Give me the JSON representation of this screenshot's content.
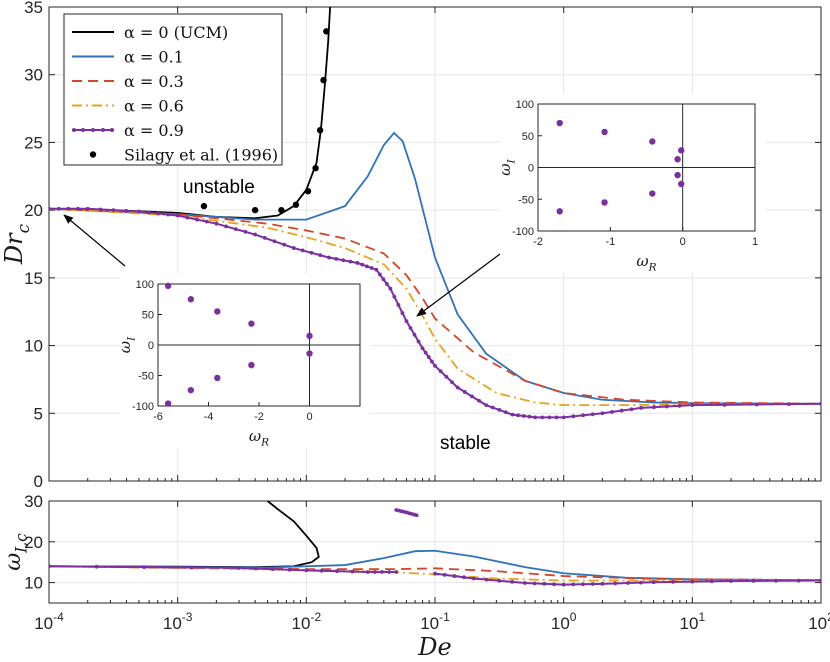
{
  "chart_data": [
    {
      "type": "line",
      "panel": "main",
      "ylabel": "Dr_c",
      "xscale": "log",
      "xlim": [
        0.0001,
        100
      ],
      "ylim": [
        0,
        35
      ],
      "grid": true,
      "legend_position": "top-left",
      "x_ticks": [
        "10^-4",
        "10^-3",
        "10^-2",
        "10^-1",
        "10^0",
        "10^1",
        "10^2"
      ],
      "y_ticks": [
        0,
        5,
        10,
        15,
        20,
        25,
        30,
        35
      ],
      "series": [
        {
          "name": "α = 0 (UCM)",
          "color": "#000000",
          "style": "solid",
          "points": [
            [
              0.0001,
              20.1
            ],
            [
              0.0003,
              20.0
            ],
            [
              0.001,
              19.8
            ],
            [
              0.002,
              19.5
            ],
            [
              0.004,
              19.4
            ],
            [
              0.006,
              19.6
            ],
            [
              0.008,
              20.3
            ],
            [
              0.01,
              21.5
            ],
            [
              0.012,
              23.5
            ],
            [
              0.013,
              26
            ],
            [
              0.014,
              29.5
            ],
            [
              0.0148,
              32.5
            ],
            [
              0.0153,
              35
            ]
          ]
        },
        {
          "name": "α = 0.1",
          "color": "#2f72bd",
          "style": "solid",
          "points": [
            [
              0.0001,
              20.1
            ],
            [
              0.001,
              19.7
            ],
            [
              0.004,
              19.3
            ],
            [
              0.01,
              19.3
            ],
            [
              0.02,
              20.3
            ],
            [
              0.03,
              22.5
            ],
            [
              0.04,
              24.8
            ],
            [
              0.048,
              25.7
            ],
            [
              0.056,
              25.1
            ],
            [
              0.07,
              22.3
            ],
            [
              0.1,
              16.5
            ],
            [
              0.15,
              12.3
            ],
            [
              0.25,
              9.4
            ],
            [
              0.5,
              7.4
            ],
            [
              1,
              6.5
            ],
            [
              2,
              6.0
            ],
            [
              5,
              5.8
            ],
            [
              10,
              5.75
            ],
            [
              100,
              5.7
            ]
          ]
        },
        {
          "name": "α = 0.3",
          "color": "#d8432a",
          "style": "dashed",
          "points": [
            [
              0.0001,
              20.1
            ],
            [
              0.001,
              19.7
            ],
            [
              0.005,
              19.0
            ],
            [
              0.01,
              18.5
            ],
            [
              0.02,
              17.9
            ],
            [
              0.04,
              16.8
            ],
            [
              0.06,
              15.2
            ],
            [
              0.08,
              13.5
            ],
            [
              0.1,
              12.0
            ],
            [
              0.2,
              9.5
            ],
            [
              0.5,
              7.4
            ],
            [
              1,
              6.5
            ],
            [
              3,
              6.0
            ],
            [
              10,
              5.8
            ],
            [
              100,
              5.7
            ]
          ]
        },
        {
          "name": "α = 0.6",
          "color": "#e8a21c",
          "style": "dashdot",
          "points": [
            [
              0.0001,
              20.1
            ],
            [
              0.001,
              19.6
            ],
            [
              0.005,
              18.7
            ],
            [
              0.01,
              18.0
            ],
            [
              0.02,
              17.2
            ],
            [
              0.04,
              16.0
            ],
            [
              0.06,
              14.2
            ],
            [
              0.08,
              12.2
            ],
            [
              0.1,
              10.5
            ],
            [
              0.15,
              8.3
            ],
            [
              0.3,
              6.5
            ],
            [
              0.6,
              5.8
            ],
            [
              1,
              5.6
            ],
            [
              3,
              5.6
            ],
            [
              10,
              5.65
            ],
            [
              100,
              5.7
            ]
          ]
        },
        {
          "name": "α = 0.9",
          "color": "#7b2fa0",
          "style": "solid-marker",
          "points": [
            [
              0.0001,
              20.1
            ],
            [
              0.0002,
              20.1
            ],
            [
              0.0005,
              19.9
            ],
            [
              0.001,
              19.6
            ],
            [
              0.002,
              19.0
            ],
            [
              0.004,
              18.2
            ],
            [
              0.008,
              17.2
            ],
            [
              0.015,
              16.5
            ],
            [
              0.025,
              16.1
            ],
            [
              0.035,
              15.6
            ],
            [
              0.045,
              14.2
            ],
            [
              0.06,
              11.8
            ],
            [
              0.08,
              9.8
            ],
            [
              0.1,
              8.5
            ],
            [
              0.15,
              6.9
            ],
            [
              0.25,
              5.6
            ],
            [
              0.4,
              4.9
            ],
            [
              0.6,
              4.7
            ],
            [
              1,
              4.7
            ],
            [
              2,
              5.0
            ],
            [
              4,
              5.4
            ],
            [
              10,
              5.6
            ],
            [
              100,
              5.7
            ]
          ]
        },
        {
          "name": "Silagy et al. (1996)",
          "color": "#000000",
          "style": "markers",
          "points": [
            [
              0.0016,
              20.3
            ],
            [
              0.004,
              20.0
            ],
            [
              0.0064,
              20.0
            ],
            [
              0.0083,
              20.4
            ],
            [
              0.0103,
              21.4
            ],
            [
              0.0118,
              23.1
            ],
            [
              0.0128,
              25.9
            ],
            [
              0.0136,
              29.6
            ],
            [
              0.0143,
              33.2
            ]
          ]
        }
      ],
      "annotations": [
        "unstable",
        "stable"
      ]
    },
    {
      "type": "line",
      "panel": "bottom",
      "xlabel": "De",
      "ylabel": "ω_I,c",
      "xscale": "log",
      "xlim": [
        0.0001,
        100
      ],
      "ylim": [
        5,
        30
      ],
      "grid": true,
      "x_ticks": [
        "10^-4",
        "10^-3",
        "10^-2",
        "10^-1",
        "10^0",
        "10^1",
        "10^2"
      ],
      "y_ticks": [
        10,
        20,
        30
      ],
      "series": [
        {
          "name": "α = 0 (UCM)",
          "color": "#000000",
          "style": "solid",
          "points": [
            [
              0.0001,
              14.0
            ],
            [
              0.001,
              13.9
            ],
            [
              0.004,
              13.8
            ],
            [
              0.008,
              14.0
            ],
            [
              0.011,
              15.0
            ],
            [
              0.0125,
              16.3
            ],
            [
              0.012,
              18.5
            ],
            [
              0.01,
              21.5
            ],
            [
              0.008,
              25
            ],
            [
              0.006,
              28
            ],
            [
              0.005,
              30
            ]
          ]
        },
        {
          "name": "α = 0.1",
          "color": "#2f72bd",
          "style": "solid",
          "points": [
            [
              0.0001,
              14.0
            ],
            [
              0.005,
              13.7
            ],
            [
              0.02,
              14.3
            ],
            [
              0.04,
              16.0
            ],
            [
              0.07,
              17.7
            ],
            [
              0.1,
              17.8
            ],
            [
              0.2,
              16.4
            ],
            [
              0.5,
              13.8
            ],
            [
              1,
              12.3
            ],
            [
              3,
              11.2
            ],
            [
              10,
              10.8
            ],
            [
              100,
              10.6
            ]
          ]
        },
        {
          "name": "α = 0.3",
          "color": "#d8432a",
          "style": "dashed",
          "points": [
            [
              0.0001,
              14.0
            ],
            [
              0.01,
              13.3
            ],
            [
              0.05,
              13.3
            ],
            [
              0.1,
              13.5
            ],
            [
              0.3,
              12.8
            ],
            [
              1,
              11.6
            ],
            [
              5,
              10.9
            ],
            [
              100,
              10.6
            ]
          ]
        },
        {
          "name": "α = 0.6",
          "color": "#e8a21c",
          "style": "dashdot",
          "points": [
            [
              0.0001,
              14.0
            ],
            [
              0.01,
              13.1
            ],
            [
              0.04,
              12.7
            ],
            [
              0.1,
              12.0
            ],
            [
              0.3,
              11.0
            ],
            [
              1,
              10.5
            ],
            [
              10,
              10.5
            ],
            [
              100,
              10.6
            ]
          ]
        },
        {
          "name": "α = 0.9",
          "color": "#7b2fa0",
          "style": "solid-marker",
          "points": [
            [
              0.0001,
              14.0
            ],
            [
              0.003,
              13.6
            ],
            [
              0.01,
              13.0
            ],
            [
              0.03,
              12.6
            ],
            [
              0.05,
              12.6
            ]
          ]
        },
        {
          "name": "α = 0.9",
          "color": "#7b2fa0",
          "style": "solid-marker",
          "points": [
            [
              0.1,
              12.2
            ],
            [
              0.2,
              11.0
            ],
            [
              0.5,
              9.9
            ],
            [
              1,
              9.5
            ],
            [
              2,
              9.7
            ],
            [
              5,
              10.1
            ],
            [
              20,
              10.4
            ],
            [
              100,
              10.5
            ]
          ]
        },
        {
          "name": "α = 0.9",
          "color": "#7b2fa0",
          "style": "solid-marker",
          "points": [
            [
              0.05,
              27.8
            ],
            [
              0.06,
              27.2
            ],
            [
              0.072,
              26.5
            ]
          ]
        }
      ]
    },
    {
      "type": "scatter",
      "panel": "inset-right",
      "xlabel": "ω_R",
      "ylabel": "ω_I",
      "xlim": [
        -2,
        1
      ],
      "ylim": [
        -100,
        100
      ],
      "x_ticks": [
        -2,
        -1,
        0,
        1
      ],
      "y_ticks": [
        -100,
        -50,
        0,
        50,
        100
      ],
      "color": "#7b2fa0",
      "points": [
        [
          -1.7,
          70
        ],
        [
          -1.7,
          -69
        ],
        [
          -1.08,
          56
        ],
        [
          -1.08,
          -55
        ],
        [
          -0.42,
          41
        ],
        [
          -0.42,
          -41
        ],
        [
          -0.07,
          13
        ],
        [
          -0.07,
          -12
        ],
        [
          -0.02,
          27
        ],
        [
          -0.02,
          -26
        ]
      ]
    },
    {
      "type": "scatter",
      "panel": "inset-left",
      "xlabel": "ω_R",
      "ylabel": "ω_I",
      "xlim": [
        -6,
        2
      ],
      "ylim": [
        -100,
        100
      ],
      "x_ticks": [
        -6,
        -4,
        -2,
        0
      ],
      "y_ticks": [
        -100,
        -50,
        0,
        50,
        100
      ],
      "color": "#7b2fa0",
      "points": [
        [
          -5.6,
          97
        ],
        [
          -5.6,
          -96
        ],
        [
          -4.7,
          75
        ],
        [
          -4.7,
          -74
        ],
        [
          -3.65,
          55
        ],
        [
          -3.65,
          -54
        ],
        [
          -2.3,
          35
        ],
        [
          -2.3,
          -33
        ],
        [
          0,
          15
        ],
        [
          0,
          -14
        ]
      ]
    }
  ],
  "labels": {
    "main_ylabel_base": "Dr",
    "main_ylabel_sub": "c",
    "bottom_ylabel_base": "ω",
    "bottom_ylabel_sub": "I,c",
    "xlabel": "De",
    "inset_xlabel_base": "ω",
    "inset_xlabel_sub": "R",
    "inset_ylabel_base": "ω",
    "inset_ylabel_sub": "I",
    "unstable": "unstable",
    "stable": "stable"
  }
}
